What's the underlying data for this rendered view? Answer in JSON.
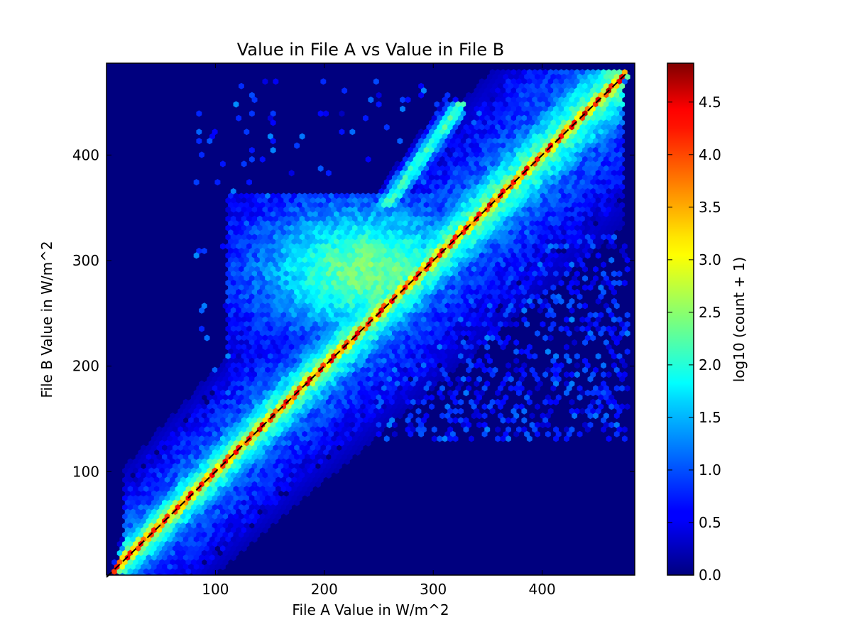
{
  "chart_data": {
    "type": "heatmap",
    "subtype": "hexbin",
    "title": "Value in File A vs Value in File B",
    "xlabel": "File A Value in W/m^2",
    "ylabel": "File B Value in W/m^2",
    "xlim": [
      0,
      485
    ],
    "ylim": [
      2,
      487
    ],
    "xticks": [
      100,
      200,
      300,
      400
    ],
    "yticks": [
      100,
      200,
      300,
      400
    ],
    "background_color": "#00007f",
    "colormap": "jet",
    "colorbar": {
      "label": "log10 (count + 1)",
      "range": [
        0.0,
        4.87
      ],
      "ticks": [
        "0.0",
        "0.5",
        "1.0",
        "1.5",
        "2.0",
        "2.5",
        "3.0",
        "3.5",
        "4.0",
        "4.5"
      ]
    },
    "reference_line": {
      "style": "dashed",
      "color": "#000000",
      "from": [
        0,
        0
      ],
      "to": [
        480,
        480
      ],
      "label": ""
    },
    "density_regions": [
      {
        "description": "main diagonal ridge",
        "x_range": [
          5,
          480
        ],
        "offset_b_minus_a": [
          0,
          0
        ],
        "value": 4.4
      },
      {
        "description": "diagonal core band",
        "x_range": [
          10,
          475
        ],
        "offset_b_minus_a": [
          -12,
          12
        ],
        "value": 3.2
      },
      {
        "description": "diagonal wide band",
        "x_range": [
          15,
          475
        ],
        "offset_b_minus_a": [
          -30,
          30
        ],
        "value": 2.2
      },
      {
        "description": "upper-left plume",
        "x_range": [
          150,
          330
        ],
        "y_range": [
          230,
          345
        ],
        "value": 2.0
      },
      {
        "description": "upper spike",
        "x_range": [
          270,
          330
        ],
        "y_range": [
          370,
          450
        ],
        "value": 2.1
      },
      {
        "description": "lower-right scatter",
        "x_range": [
          280,
          480
        ],
        "y_range": [
          130,
          330
        ],
        "value": 0.7
      }
    ]
  }
}
